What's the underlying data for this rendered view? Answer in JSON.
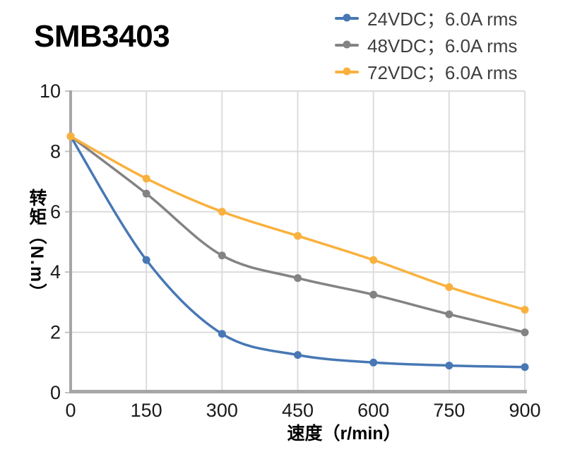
{
  "title": "SMB3403",
  "legend": {
    "position": "top-right",
    "items": [
      {
        "label": "24VDC；6.0A rms",
        "color": "#4778B4"
      },
      {
        "label": "48VDC；6.0A rms",
        "color": "#838383"
      },
      {
        "label": "72VDC；6.0A rms",
        "color": "#F9B13E"
      }
    ]
  },
  "chart_data": {
    "type": "line",
    "title": "SMB3403",
    "xlabel": "速度（r/min）",
    "ylabel": "转矩（N.m）",
    "x": [
      0,
      150,
      300,
      450,
      600,
      750,
      900
    ],
    "series": [
      {
        "name": "24VDC；6.0A rms",
        "color": "#4778B4",
        "values": [
          8.5,
          4.4,
          1.95,
          1.25,
          1.0,
          0.9,
          0.85
        ]
      },
      {
        "name": "48VDC；6.0A rms",
        "color": "#838383",
        "values": [
          8.5,
          6.6,
          4.55,
          3.8,
          3.25,
          2.6,
          2.0
        ]
      },
      {
        "name": "72VDC；6.0A rms",
        "color": "#F9B13E",
        "values": [
          8.5,
          7.1,
          6.0,
          5.2,
          4.4,
          3.5,
          2.75
        ]
      }
    ],
    "xlim": [
      0,
      900
    ],
    "ylim": [
      0,
      10
    ],
    "xticks": [
      0,
      150,
      300,
      450,
      600,
      750,
      900
    ],
    "yticks": [
      0,
      2,
      4,
      6,
      8,
      10
    ],
    "grid": true,
    "legend_position": "top-right",
    "grid_color": "#DCDCDC",
    "axis_color": "#A6A6A6",
    "tick_color": "#C2C2C2",
    "line_width": 3.5,
    "marker_radius": 5.5
  }
}
